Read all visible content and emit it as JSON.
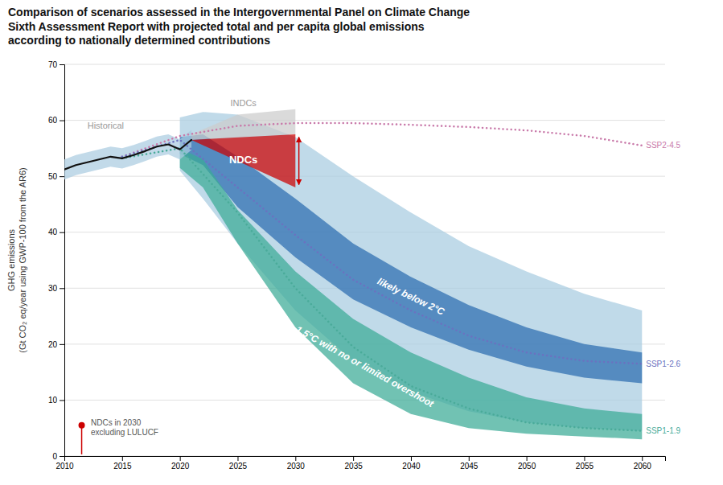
{
  "chart_data": {
    "type": "line",
    "title": "Comparison of scenarios assessed in the Intergovernmental Panel on Climate Change\nSixth Assessment Report with projected total and per capita global emissions\naccording to nationally determined contributions",
    "y_label": "GHG emissions\n(Gt CO₂ eq/year using GWP-100 from the AR6)",
    "xlim": [
      2010,
      2062
    ],
    "ylim": [
      0,
      70
    ],
    "xticks": [
      2010,
      2015,
      2020,
      2025,
      2030,
      2035,
      2040,
      2045,
      2050,
      2055,
      2060
    ],
    "yticks": [
      0,
      10,
      20,
      30,
      40,
      50,
      60,
      70
    ],
    "grid": "y",
    "series": [
      {
        "type": "area",
        "color": "#a8cce0",
        "x": [
          2020,
          2022,
          2025,
          2030,
          2035,
          2040,
          2045,
          2050,
          2055,
          2060
        ],
        "lower": [
          51.0,
          46.0,
          38.0,
          26.0,
          17.0,
          11.5,
          8.0,
          6.0,
          5.0,
          4.5
        ],
        "upper": [
          60.5,
          61.5,
          61.0,
          57.0,
          50.0,
          43.5,
          37.5,
          33.0,
          29.0,
          26.0
        ]
      },
      {
        "type": "area",
        "color": "#2b6cb0",
        "x": [
          2020,
          2022,
          2025,
          2030,
          2035,
          2040,
          2045,
          2050,
          2055,
          2060
        ],
        "lower": [
          54.0,
          52.0,
          44.5,
          35.5,
          28.0,
          23.0,
          19.0,
          16.0,
          14.0,
          13.0
        ],
        "upper": [
          57.0,
          57.5,
          53.5,
          46.0,
          38.0,
          32.0,
          27.0,
          23.0,
          20.0,
          18.5
        ]
      },
      {
        "type": "area",
        "color": "#3aab96",
        "x": [
          2020,
          2022,
          2025,
          2030,
          2035,
          2040,
          2045,
          2050,
          2055,
          2060
        ],
        "lower": [
          51.5,
          48.0,
          38.0,
          23.0,
          13.0,
          7.5,
          5.0,
          4.0,
          3.5,
          3.0
        ],
        "upper": [
          55.0,
          53.0,
          44.0,
          33.0,
          24.5,
          18.5,
          14.0,
          10.5,
          8.5,
          7.5
        ]
      },
      {
        "name": "SSP2-4.5",
        "color": "#c97aaa",
        "line_style": "dotted",
        "x": [
          2015,
          2020,
          2025,
          2030,
          2035,
          2040,
          2045,
          2050,
          2055,
          2060
        ],
        "values": [
          53.5,
          57.2,
          59.0,
          59.5,
          59.5,
          59.2,
          58.8,
          58.2,
          57.2,
          55.5
        ]
      },
      {
        "name": "SSP1-2.6",
        "color": "#6b72c0",
        "line_style": "dotted",
        "x": [
          2015,
          2020,
          2025,
          2030,
          2035,
          2040,
          2045,
          2050,
          2055,
          2060
        ],
        "values": [
          53.5,
          56.5,
          48.0,
          39.5,
          31.5,
          26.0,
          21.5,
          18.5,
          17.0,
          16.5
        ]
      },
      {
        "name": "SSP1-1.9",
        "color": "#4aab9a",
        "line_style": "dotted",
        "x": [
          2015,
          2020,
          2025,
          2030,
          2035,
          2040,
          2045,
          2050,
          2055,
          2060
        ],
        "values": [
          53.2,
          55.0,
          43.5,
          30.0,
          19.5,
          12.5,
          8.5,
          6.0,
          5.0,
          4.5
        ]
      },
      {
        "type": "area",
        "color": "#cccccc",
        "x": [
          2021,
          2025,
          2030
        ],
        "lower": [
          56.5,
          57.0,
          57.5
        ],
        "upper": [
          57.5,
          61.0,
          62.0
        ]
      },
      {
        "type": "area",
        "color": "#cc0000",
        "x": [
          2021,
          2030
        ],
        "lower": [
          56.5,
          48.0
        ],
        "upper": [
          56.5,
          57.5
        ]
      },
      {
        "type": "arrow",
        "color": "#cc0000",
        "x": [
          2030.3
        ],
        "lower": [
          48.5
        ],
        "upper": [
          57.0
        ]
      },
      {
        "type": "area",
        "color": "#aacce0",
        "x": [
          2010,
          2011,
          2012,
          2013,
          2014,
          2015,
          2016,
          2017,
          2018,
          2019,
          2020,
          2021
        ],
        "lower": [
          49.4,
          50.2,
          50.7,
          51.2,
          51.7,
          51.4,
          52.0,
          52.7,
          53.5,
          53.9,
          53.0,
          54.7
        ],
        "upper": [
          53.0,
          53.8,
          54.3,
          54.8,
          55.3,
          55.0,
          55.6,
          56.3,
          57.1,
          57.5,
          56.6,
          58.3
        ]
      },
      {
        "color": "#111111",
        "line_style": "solid",
        "x": [
          2010,
          2011,
          2012,
          2013,
          2014,
          2015,
          2016,
          2017,
          2018,
          2019,
          2020,
          2021
        ],
        "values": [
          51.2,
          52.0,
          52.5,
          53.0,
          53.5,
          53.2,
          53.8,
          54.5,
          55.3,
          55.7,
          54.8,
          56.5
        ]
      },
      {
        "type": "stem",
        "color": "#cc0000",
        "marker": "circle",
        "x": [
          2011.5
        ],
        "values": [
          5.5
        ],
        "base": [
          0.3
        ]
      }
    ],
    "annotations": [
      {
        "text": "INDCs",
        "x": 2025.5,
        "y": 62.5,
        "color": "#999999"
      },
      {
        "text": "NDCs",
        "x": 2025.5,
        "y": 53.0,
        "color": "#ffffff"
      },
      {
        "text": "likely below 2°C",
        "x": 2040,
        "y": 28.5,
        "color": "#ffffff"
      },
      {
        "text": "1.5°C with no or limited overshoot",
        "x": 2036,
        "y": 16.0,
        "color": "#ffffff"
      },
      {
        "text": "Historical",
        "x": 2012.0,
        "y": 58.5,
        "color": "#999999"
      },
      {
        "text": "NDCs in 2030\nexcluding LULUCF",
        "x": 2012.3,
        "y": 5.2,
        "color": "#555555"
      }
    ]
  }
}
